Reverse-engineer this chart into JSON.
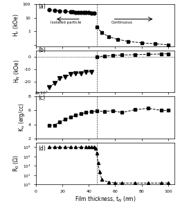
{
  "panel_a": {
    "label": "(a)",
    "ylabel": "H$_c$ (kOe)",
    "x_isolated": [
      10,
      14,
      18,
      22,
      26,
      28,
      30,
      32,
      34,
      36,
      38,
      40,
      42,
      44
    ],
    "y_isolated": [
      38,
      36,
      33,
      30,
      28,
      27,
      26,
      26,
      25,
      25,
      24,
      24,
      23,
      22
    ],
    "x_continuous": [
      46,
      50,
      55,
      62,
      70,
      80,
      90,
      100
    ],
    "y_continuous": [
      2.0,
      0.8,
      0.4,
      0.25,
      0.18,
      0.14,
      0.12,
      0.1
    ],
    "ylim": [
      0.08,
      100
    ]
  },
  "panel_b": {
    "label": "(b)",
    "ylabel": "H$_N$ (kOe)",
    "x_isolated": [
      10,
      14,
      18,
      22,
      26,
      30,
      34,
      38,
      42
    ],
    "y_isolated": [
      -24,
      -21,
      -17,
      -16,
      -14,
      -13,
      -13,
      -12,
      -12
    ],
    "x_continuous": [
      46,
      52,
      58,
      65,
      75,
      85,
      95,
      100
    ],
    "y_continuous": [
      0.0,
      0.5,
      1.0,
      1.3,
      1.6,
      1.9,
      2.1,
      2.3
    ],
    "ylim": [
      -28,
      5
    ]
  },
  "panel_c": {
    "label": "(c)",
    "ylabel": "K$_u$ (erg/cc)",
    "ylabel_scale": "8x10$^7$",
    "x_all": [
      10,
      14,
      18,
      22,
      26,
      30,
      34,
      38,
      42,
      46,
      52,
      58,
      65,
      75,
      85,
      95,
      100
    ],
    "y_all": [
      3.9,
      3.9,
      4.3,
      4.7,
      5.0,
      5.3,
      5.5,
      5.7,
      5.8,
      5.9,
      5.85,
      5.95,
      5.7,
      6.1,
      6.3,
      6.0,
      6.0
    ],
    "ylim": [
      2,
      8
    ],
    "yticks": [
      2,
      4,
      6,
      8
    ]
  },
  "panel_d": {
    "label": "(d)",
    "ylabel": "R$_0$ ($\\Omega$)",
    "x_all": [
      10,
      14,
      18,
      22,
      26,
      30,
      34,
      38,
      40,
      42,
      44,
      45,
      46,
      47,
      48,
      50,
      55,
      60,
      65,
      75,
      85,
      95,
      100
    ],
    "y_all": [
      100000000.0,
      100000000.0,
      100000000.0,
      100000000.0,
      100000000.0,
      100000000.0,
      100000000.0,
      100000000.0,
      100000000.0,
      100000000.0,
      100000000.0,
      50000000.0,
      5000000.0,
      50000.0,
      500,
      10,
      3,
      2,
      2,
      2,
      2,
      2,
      2
    ],
    "ylim": [
      1,
      1000000000.0
    ],
    "xlabel": "Film thickness, t$_N$ (nm)",
    "yticks": [
      1,
      100,
      10000,
      1000000,
      100000000
    ],
    "yticklabels": [
      "10$^0$",
      "10$^2$",
      "10$^4$",
      "10$^6$",
      "10$^8$"
    ]
  },
  "vline_x": 46,
  "xlim": [
    0,
    105
  ],
  "xticks": [
    0,
    20,
    40,
    60,
    80,
    100
  ]
}
